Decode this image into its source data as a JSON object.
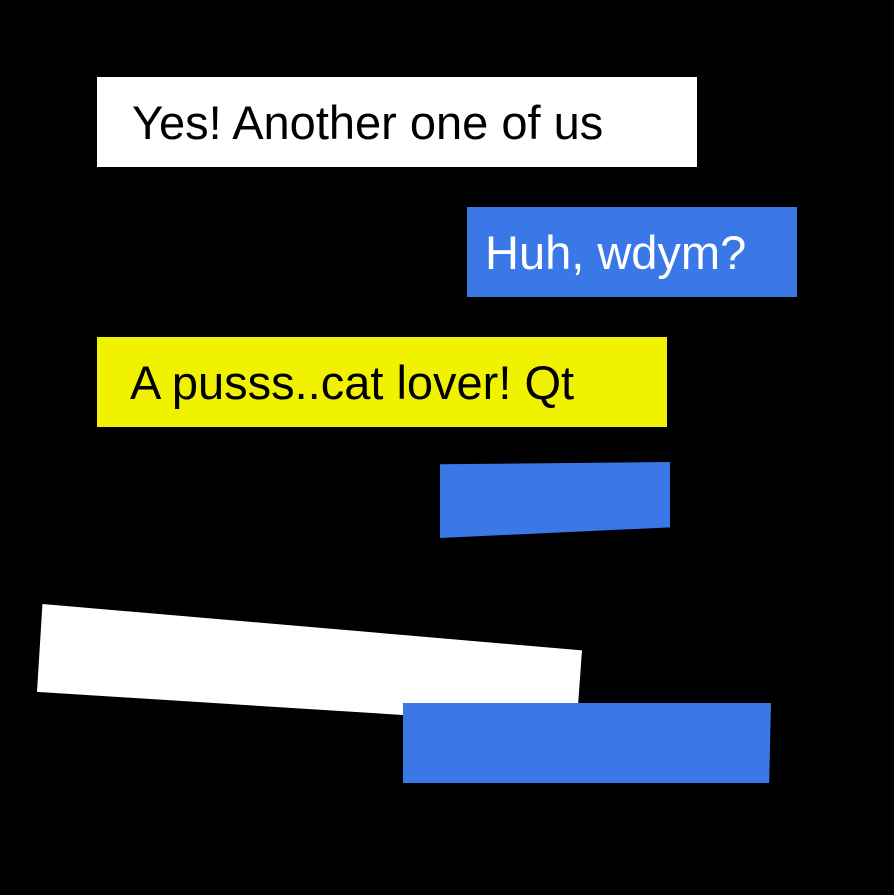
{
  "colors": {
    "background": "#000000",
    "white": "#ffffff",
    "blue": "#3b78e7",
    "yellow": "#f1f200",
    "dark_text": "#000000",
    "light_text": "#ffffff"
  },
  "messages": [
    {
      "text": "Yes! Another one of us",
      "color": "#ffffff",
      "text_color": "#000000"
    },
    {
      "text": "Huh, wdym?",
      "color": "#3b78e7",
      "text_color": "#ffffff"
    },
    {
      "text": "A pusss..cat lover! Qt",
      "color": "#f1f200",
      "text_color": "#000000"
    },
    {
      "text": "",
      "color": "#3b78e7",
      "text_color": "#ffffff"
    },
    {
      "text": "",
      "color": "#ffffff",
      "text_color": "#000000"
    },
    {
      "text": "",
      "color": "#3b78e7",
      "text_color": "#ffffff"
    }
  ]
}
